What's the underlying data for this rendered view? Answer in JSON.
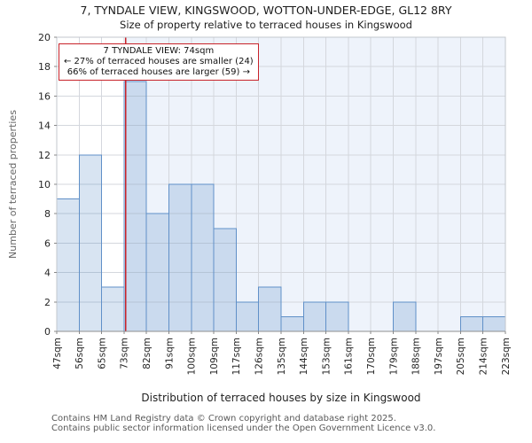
{
  "title": "7, TYNDALE VIEW, KINGSWOOD, WOTTON-UNDER-EDGE, GL12 8RY",
  "subtitle": "Size of property relative to terraced houses in Kingswood",
  "chart_data": {
    "type": "bar",
    "histogram": true,
    "title": "7, TYNDALE VIEW, KINGSWOOD, WOTTON-UNDER-EDGE, GL12 8RY",
    "subtitle": "Size of property relative to terraced houses in Kingswood",
    "xlabel": "Distribution of terraced houses by size in Kingswood",
    "ylabel": "Number of terraced properties",
    "categories": [
      "47sqm",
      "56sqm",
      "65sqm",
      "73sqm",
      "82sqm",
      "91sqm",
      "100sqm",
      "109sqm",
      "117sqm",
      "126sqm",
      "135sqm",
      "144sqm",
      "153sqm",
      "161sqm",
      "170sqm",
      "179sqm",
      "188sqm",
      "197sqm",
      "205sqm",
      "214sqm",
      "223sqm"
    ],
    "bin_edges_sqm": [
      47,
      56,
      65,
      73,
      82,
      91,
      100,
      109,
      117,
      126,
      135,
      144,
      153,
      161,
      170,
      179,
      188,
      197,
      205,
      214,
      223
    ],
    "values": [
      9,
      12,
      3,
      17,
      8,
      10,
      10,
      7,
      2,
      3,
      1,
      2,
      2,
      0,
      0,
      2,
      0,
      0,
      1,
      1
    ],
    "ylim": [
      0,
      20
    ],
    "ytick_step": 2,
    "grid": true,
    "legend": "none",
    "marker": {
      "value_sqm": 74,
      "smaller_percent": 27,
      "smaller_count": 24,
      "larger_percent": 66,
      "larger_count": 59
    },
    "annotation": {
      "lines": [
        "7 TYNDALE VIEW: 74sqm",
        "← 27% of terraced houses are smaller (24)",
        "66% of terraced houses are larger (59) →"
      ]
    },
    "colors": {
      "bar_fill": "rgba(62,118,188,0.2)",
      "bar_edge": "#6090c8",
      "marker_line": "#c8232a",
      "annotation_border": "#c8232a",
      "shade_right_of_marker": "#eef3fb",
      "grid_line": "#d4d7dd",
      "spine": "#c3c7cd",
      "axis_bottom": "#8f8f8f"
    }
  },
  "footer": {
    "line1": "Contains HM Land Registry data © Crown copyright and database right 2025.",
    "line2": "Contains public sector information licensed under the Open Government Licence v3.0."
  }
}
